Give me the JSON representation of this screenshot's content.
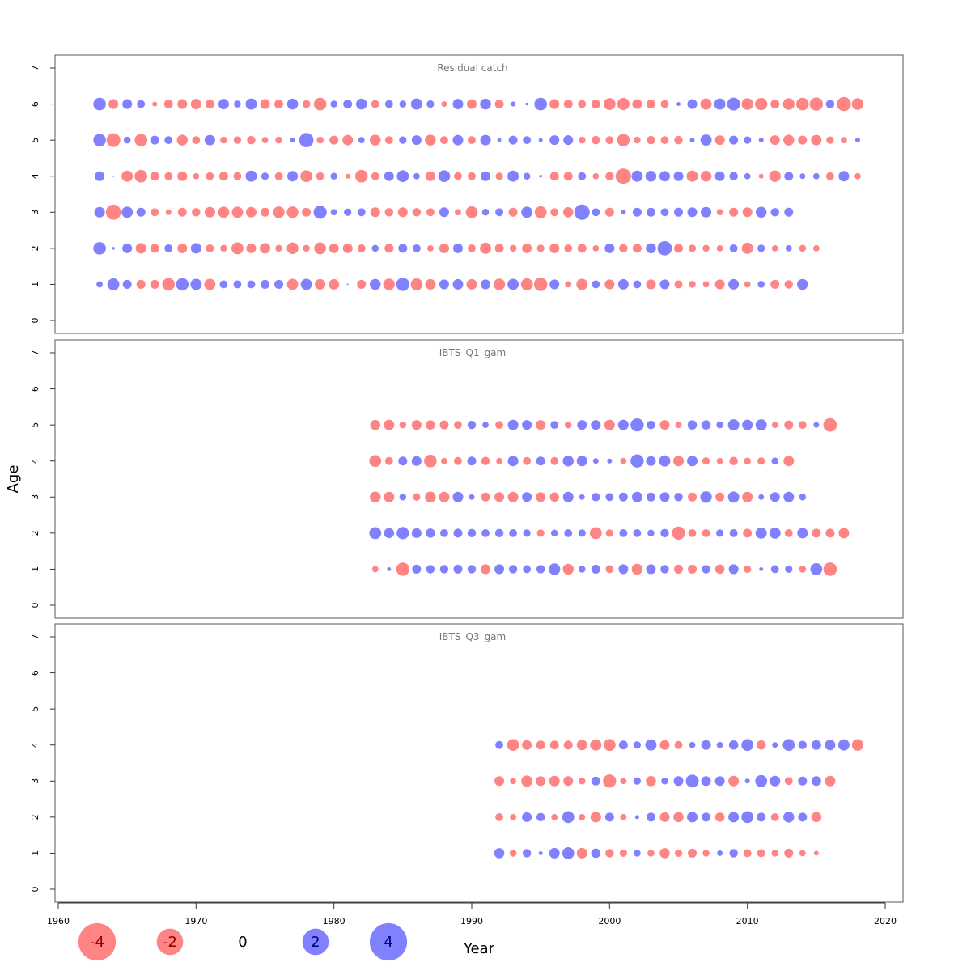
{
  "chart_data": {
    "type": "scatter",
    "subtype": "bubble",
    "xlabel": "Year",
    "ylabel": "Age",
    "xlim": [
      1960,
      2020
    ],
    "ylim": [
      0,
      7
    ],
    "x_ticks": [
      "1960",
      "1970",
      "1980",
      "1990",
      "2000",
      "2010",
      "2020"
    ],
    "y_ticks": [
      "0",
      "1",
      "2",
      "3",
      "4",
      "5",
      "6",
      "7"
    ],
    "colors": {
      "positive": "#5050ff",
      "negative": "#ff5555"
    },
    "legend": {
      "placement": "bottom-left",
      "items": [
        {
          "label": "-4",
          "value": -4
        },
        {
          "label": "-2",
          "value": -2
        },
        {
          "label": "0",
          "value": 0
        },
        {
          "label": "2",
          "value": 2
        },
        {
          "label": "4",
          "value": 4
        }
      ]
    },
    "panels": [
      {
        "title": "Residual catch",
        "year_start": 1963,
        "ages": [
          {
            "age": 6,
            "values": [
              2,
              -1.2,
              1.2,
              0.8,
              -0.3,
              -1,
              -1.2,
              -1.4,
              -1,
              1.4,
              0.6,
              1.6,
              -1.2,
              -1,
              1.5,
              -0.8,
              -2,
              0.6,
              1,
              1.5,
              -0.8,
              0.8,
              0.6,
              1.6,
              0.7,
              -0.4,
              1.4,
              -1.2,
              1.5,
              -1,
              0.3,
              0.1,
              2,
              -1.2,
              -1,
              -0.8,
              -1,
              -1.8,
              -1.9,
              -1.2,
              -1,
              -0.8,
              0.2,
              1.2,
              -1.6,
              1.6,
              2.1,
              -1.7,
              -1.9,
              -1,
              -1.7,
              -2,
              -2.2,
              0.9,
              -2.5,
              -1.7
            ]
          },
          {
            "age": 5,
            "values": [
              2,
              -2.4,
              0.6,
              -2,
              1,
              0.8,
              -1.5,
              -0.8,
              1.4,
              -0.6,
              -0.7,
              -0.9,
              -0.5,
              -0.6,
              0.3,
              2.6,
              -0.6,
              -1,
              -1.4,
              0.5,
              -1.5,
              -0.8,
              0.7,
              1.2,
              -1.5,
              -0.8,
              1.4,
              -0.8,
              1.4,
              0.2,
              1,
              0.8,
              0.2,
              1.2,
              1.2,
              -0.6,
              -0.9,
              -0.8,
              -2,
              -0.6,
              -0.9,
              -0.8,
              -0.9,
              0.3,
              1.6,
              -1.2,
              1,
              0.7,
              0.3,
              -1.2,
              -1.5,
              -1,
              -1.4,
              -0.7,
              -0.5,
              0.3
            ]
          },
          {
            "age": 4,
            "values": [
              1.2,
              0,
              -1.6,
              -2,
              -1,
              -0.8,
              -1.2,
              -0.5,
              -0.8,
              -1,
              -0.8,
              1.6,
              0.7,
              -0.8,
              1.4,
              -1.8,
              -0.8,
              0.6,
              -0.3,
              -2,
              -0.8,
              1.2,
              1.8,
              0.5,
              -1.2,
              1.8,
              -0.8,
              -0.8,
              1.2,
              -0.7,
              1.6,
              0.6,
              0.1,
              -1,
              -1,
              0.8,
              -0.5,
              -0.9,
              -3,
              1.6,
              1.5,
              1.4,
              1.2,
              -1.6,
              -1.5,
              1.2,
              0.9,
              0.5,
              -0.3,
              -1.7,
              1,
              0.4,
              0.5,
              -0.8,
              1.4,
              -0.5
            ]
          },
          {
            "age": 3,
            "values": [
              1.4,
              -2.9,
              1.6,
              1,
              -0.8,
              -0.4,
              -1,
              -0.9,
              -1.4,
              -1.6,
              -1.6,
              -1.4,
              -1,
              -1.7,
              -1.7,
              -1,
              2.2,
              0.5,
              0.7,
              0.8,
              -1.2,
              -0.9,
              -1.2,
              -0.9,
              -0.8,
              1.2,
              -0.5,
              -1.8,
              0.6,
              0.8,
              -1,
              1.6,
              -1.8,
              -0.8,
              -1.3,
              3,
              0.8,
              -1,
              0.3,
              1,
              1,
              0.8,
              1,
              1.2,
              1.4,
              -0.5,
              -1,
              -1.2,
              1.5,
              0.9,
              1
            ]
          },
          {
            "age": 2,
            "values": [
              2,
              0.1,
              1.2,
              -1.4,
              -1,
              0.8,
              -1.2,
              1.4,
              -0.8,
              -0.6,
              -1.8,
              -1.2,
              -1.4,
              -0.6,
              -1.7,
              -0.6,
              -1.8,
              -1.2,
              -1.2,
              -0.8,
              0.6,
              -1,
              1,
              0.8,
              -0.5,
              -1.2,
              1.2,
              -0.8,
              -1.6,
              -1,
              -0.6,
              -1.2,
              -0.7,
              -1.2,
              -0.8,
              -1,
              -0.5,
              1.2,
              -0.9,
              -1,
              1.3,
              2.6,
              -1,
              -0.7,
              -0.6,
              -0.5,
              0.8,
              -1.6,
              0.7,
              -0.5,
              0.5,
              -0.6,
              -0.5
            ]
          },
          {
            "age": 1,
            "values": [
              0.5,
              1.8,
              1,
              -1,
              -1,
              -2,
              2,
              1.6,
              -1.6,
              0.8,
              0.8,
              0.8,
              1,
              1,
              -1.6,
              1.6,
              -1.4,
              -1.4,
              0,
              -1,
              1.5,
              -1.7,
              2.2,
              -1.8,
              -1.4,
              1.2,
              1.4,
              -1.4,
              1.2,
              -1.7,
              1.6,
              -1.8,
              -2.3,
              1.2,
              -0.5,
              -1.6,
              0.8,
              -1.2,
              1.4,
              0.8,
              -1.2,
              1.2,
              -0.8,
              -0.6,
              -0.5,
              -1.2,
              1.4,
              -0.5,
              0.6,
              -1,
              -0.9,
              1.5
            ]
          }
        ]
      },
      {
        "title": "IBTS_Q1_gam",
        "year_start": 1983,
        "ages": [
          {
            "age": 5,
            "values": [
              -1.3,
              -1.4,
              -0.6,
              -1.2,
              -1.1,
              -1,
              -0.8,
              0.9,
              0.5,
              -0.8,
              1.4,
              1.2,
              -1.2,
              0.8,
              -0.6,
              1.2,
              1.2,
              -1.4,
              1.4,
              2.2,
              0.9,
              -1.2,
              -0.5,
              1.1,
              1.1,
              0.6,
              1.6,
              1.4,
              1.6,
              -0.5,
              -1,
              -0.8,
              0.4,
              -2.3
            ]
          },
          {
            "age": 4,
            "values": [
              -1.8,
              -0.8,
              1,
              1.2,
              -2,
              -0.5,
              -0.8,
              1,
              -0.9,
              -0.5,
              1.4,
              -0.8,
              1,
              -0.8,
              1.5,
              1.4,
              0.4,
              0.3,
              -0.5,
              2.2,
              1.2,
              1.6,
              -1.4,
              1.4,
              -0.7,
              -0.5,
              -0.9,
              -0.6,
              -0.7,
              0.6,
              -1.4
            ]
          },
          {
            "age": 3,
            "values": [
              -1.5,
              -1.4,
              0.6,
              -0.7,
              -1.5,
              -1.4,
              1.4,
              0.4,
              -1,
              -1.2,
              -1.4,
              1.2,
              -1.2,
              -1.1,
              1.4,
              0.4,
              0.9,
              0.8,
              1,
              1.4,
              1,
              1.2,
              0.9,
              -1,
              1.7,
              -1,
              1.6,
              -1.4,
              0.4,
              1.2,
              1.4,
              0.6
            ]
          },
          {
            "age": 2,
            "values": [
              1.8,
              1.3,
              1.9,
              1.2,
              1.1,
              0.8,
              1,
              0.9,
              0.8,
              0.9,
              0.8,
              0.7,
              -0.7,
              0.6,
              0.8,
              0.7,
              -1.8,
              -0.7,
              0.8,
              0.8,
              0.6,
              0.9,
              -2.2,
              -0.8,
              -0.8,
              0.7,
              0.8,
              -1,
              1.6,
              1.6,
              -0.8,
              1.4,
              -1,
              -1,
              -1.4
            ]
          },
          {
            "age": 1,
            "values": [
              -0.5,
              0.2,
              -2.2,
              1,
              0.9,
              0.9,
              1,
              0.9,
              -1.2,
              1.2,
              0.9,
              0.8,
              0.9,
              1.7,
              -1.5,
              0.6,
              1,
              -0.8,
              1.2,
              -1.5,
              1.2,
              0.9,
              -1,
              -1,
              0.9,
              -1.1,
              1.2,
              -0.7,
              0.2,
              0.8,
              0.7,
              -0.6,
              1.8,
              -2.3
            ]
          }
        ]
      },
      {
        "title": "IBTS_Q3_gam",
        "year_start": 1992,
        "ages": [
          {
            "age": 4,
            "values": [
              0.8,
              -1.8,
              -1.2,
              -1,
              -1,
              -1,
              -1.4,
              -1.6,
              -1.8,
              1,
              0.7,
              1.6,
              -1.2,
              -0.8,
              0.5,
              1.2,
              0.5,
              1.1,
              1.8,
              -1.1,
              0.4,
              1.8,
              0.9,
              1.2,
              1.4,
              1.6,
              -1.7
            ]
          },
          {
            "age": 3,
            "values": [
              -1.2,
              -0.5,
              -1.6,
              -1.2,
              -1.4,
              -1.2,
              -0.6,
              1,
              -2.2,
              -0.5,
              0.7,
              -1.3,
              0.6,
              1.2,
              2.1,
              1.2,
              1.2,
              -1.4,
              0.3,
              1.8,
              1.4,
              -0.8,
              1,
              1.2,
              -1.4
            ]
          },
          {
            "age": 2,
            "values": [
              -0.8,
              -0.5,
              1.2,
              0.9,
              -0.5,
              1.8,
              -0.5,
              -1.4,
              1,
              -0.5,
              0.2,
              1,
              -1.2,
              -1.3,
              1.4,
              1,
              -1.1,
              1.4,
              1.8,
              1,
              -0.8,
              1.5,
              1,
              -1.3
            ]
          },
          {
            "age": 1,
            "values": [
              1.3,
              -0.6,
              0.9,
              0.2,
              1.4,
              1.8,
              -1.4,
              1.1,
              -0.9,
              -0.7,
              0.6,
              -0.6,
              -1.3,
              -0.7,
              -1,
              -0.6,
              0.4,
              0.9,
              -0.8,
              -0.8,
              -0.6,
              -1,
              -0.5,
              -0.3
            ]
          }
        ]
      }
    ]
  }
}
